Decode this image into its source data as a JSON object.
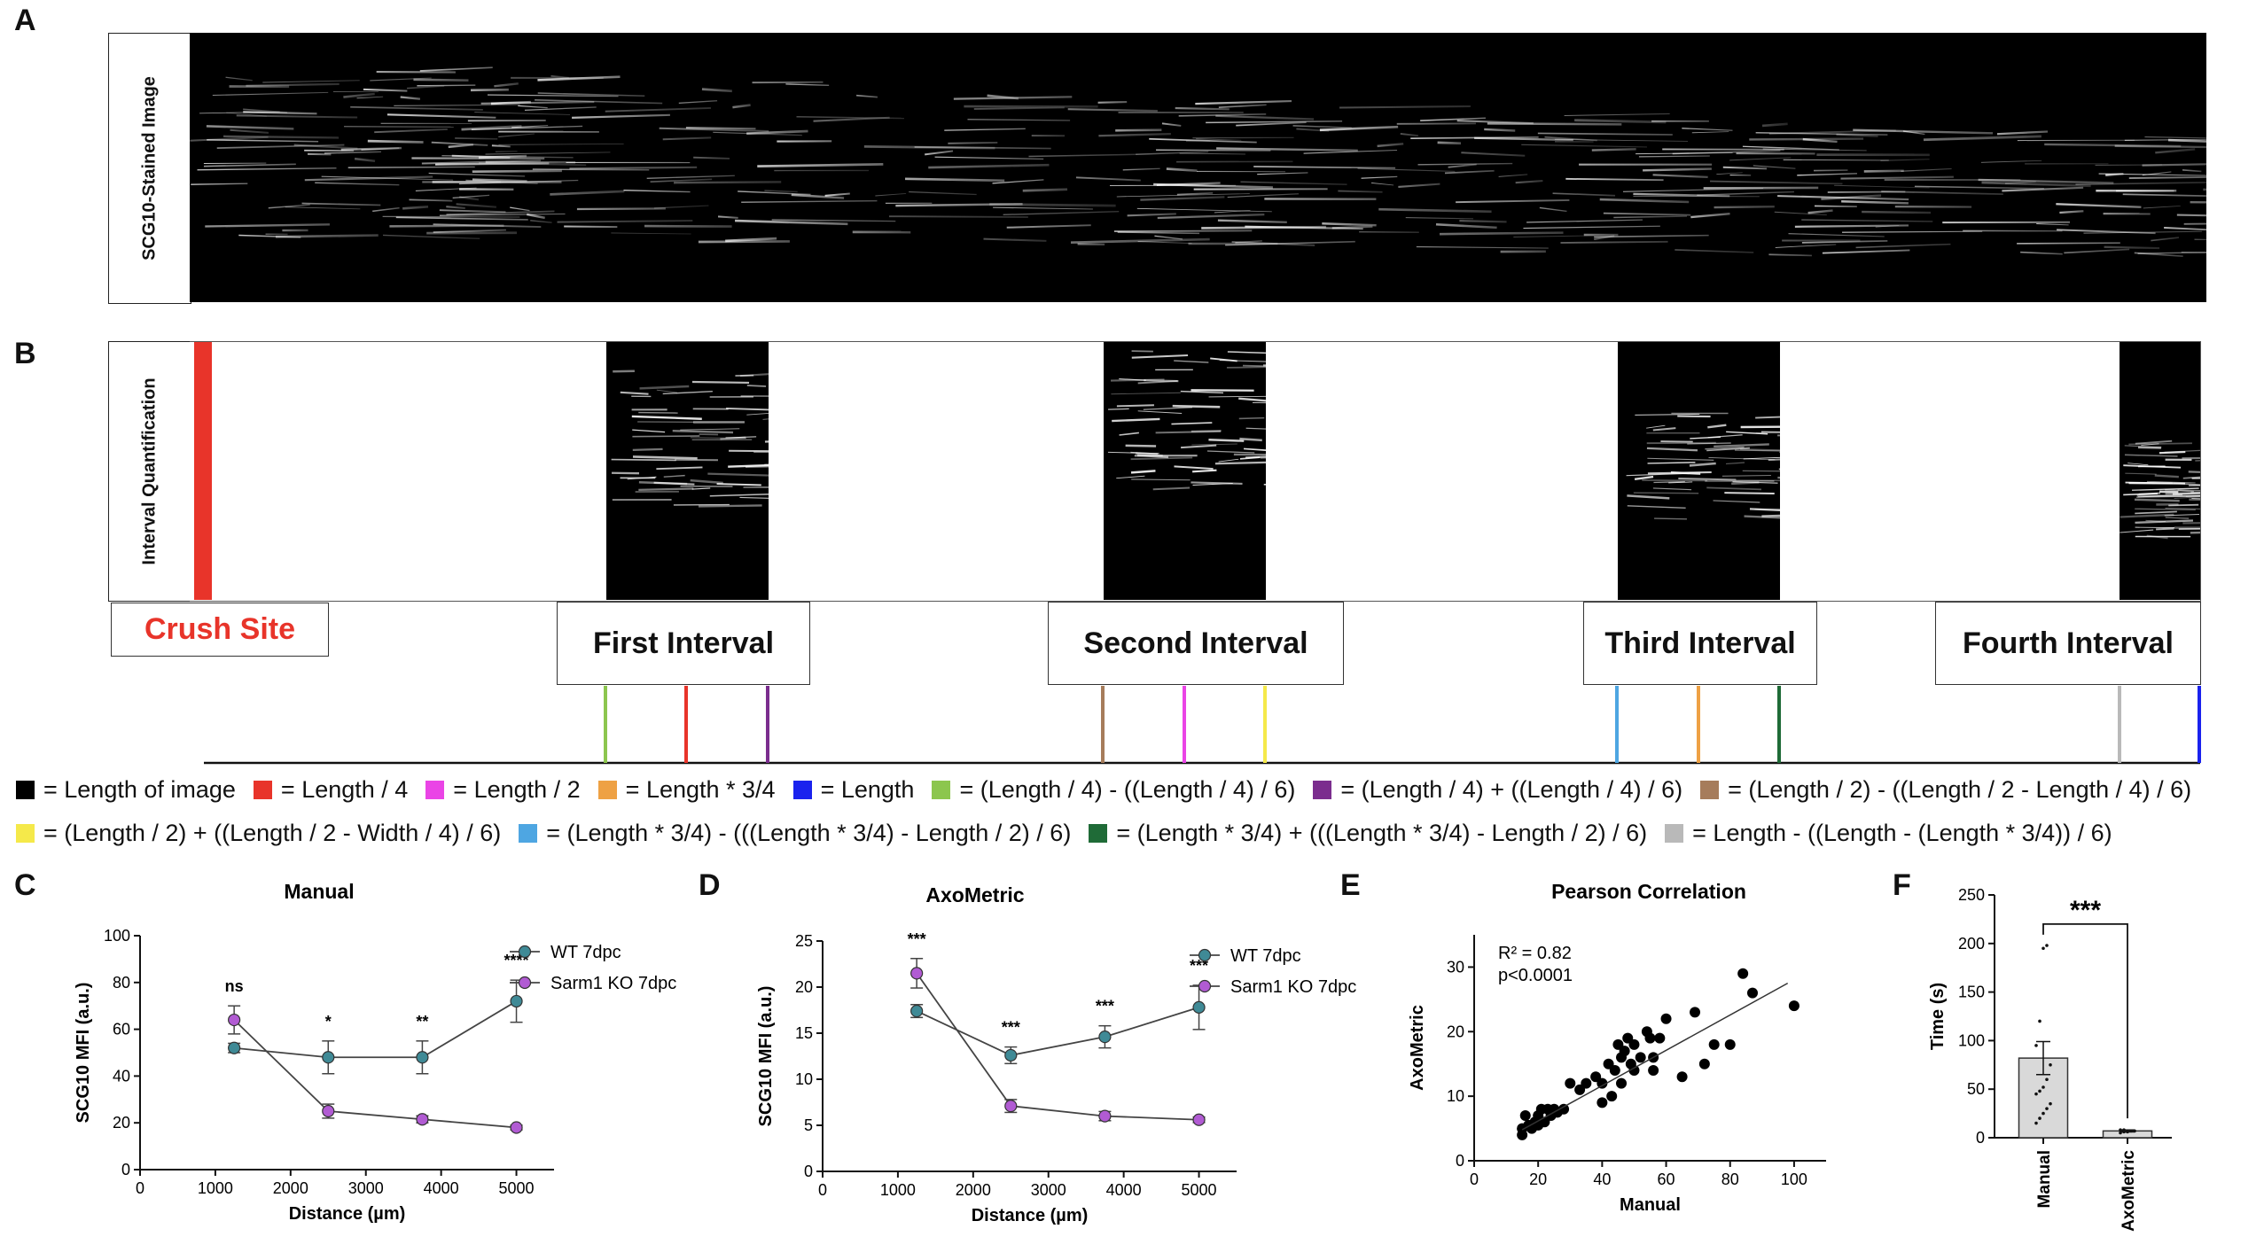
{
  "panels": {
    "A": {
      "letter": "A",
      "label": "SCG10-Stained Image"
    },
    "B": {
      "letter": "B",
      "label": "Interval Quantification",
      "crush_site": "Crush Site",
      "intervals": [
        "First Interval",
        "Second Interval",
        "Third Interval",
        "Fourth Interval"
      ]
    }
  },
  "legend": {
    "row1": [
      {
        "color": "#000000",
        "text": "= Length of image"
      },
      {
        "color": "#e8342a",
        "text": "= Length / 4"
      },
      {
        "color": "#ea44e6",
        "text": "= Length / 2"
      },
      {
        "color": "#eea144",
        "text": "= Length * 3/4"
      },
      {
        "color": "#1a22ee",
        "text": "= Length"
      },
      {
        "color": "#8cc64e",
        "text": "= (Length / 4) - ((Length / 4) / 6)"
      },
      {
        "color": "#7b2d8e",
        "text": "= (Length / 4) + ((Length / 4) / 6)"
      },
      {
        "color": "#a67c5b",
        "text": "= (Length / 2) - ((Length / 2 - Length / 4) / 6)"
      }
    ],
    "row2": [
      {
        "color": "#f5e94a",
        "text": "= (Length / 2) + ((Length / 2 - Width / 4) / 6)"
      },
      {
        "color": "#4ea6e2",
        "text": "= (Length * 3/4) - (((Length * 3/4) - Length / 2) / 6)"
      },
      {
        "color": "#1f6b37",
        "text": "= (Length * 3/4) + (((Length * 3/4) - Length / 2) / 6)"
      },
      {
        "color": "#b9b9b9",
        "text": "= Length - ((Length - (Length * 3/4)) / 6)"
      }
    ]
  },
  "chart_data": [
    {
      "panel": "C",
      "type": "line",
      "title": "Manual",
      "xlabel": "Distance (µm)",
      "ylabel": "SCG10 MFI (a.u.)",
      "xlim": [
        0,
        5500
      ],
      "ylim": [
        0,
        100
      ],
      "xticks": [
        "0",
        "1000",
        "2000",
        "3000",
        "4000",
        "5000"
      ],
      "yticks": [
        "0",
        "20",
        "40",
        "60",
        "80",
        "100"
      ],
      "x": [
        1250,
        2500,
        3750,
        5000
      ],
      "series": [
        {
          "name": "WT 7dpc",
          "color": "#3f8a96",
          "values": [
            52,
            48,
            48,
            72
          ],
          "err": [
            2,
            7,
            7,
            9
          ]
        },
        {
          "name": "Sarm1 KO 7dpc",
          "color": "#b15bd3",
          "values": [
            64,
            25,
            21.5,
            18
          ],
          "err": [
            6,
            3,
            1.5,
            1
          ]
        }
      ],
      "significance": [
        "ns",
        "*",
        "**",
        "****"
      ]
    },
    {
      "panel": "D",
      "type": "line",
      "title": "AxoMetric",
      "xlabel": "Distance (µm)",
      "ylabel": "SCG10 MFI (a.u.)",
      "xlim": [
        0,
        5500
      ],
      "ylim": [
        0,
        25
      ],
      "xticks": [
        "0",
        "1000",
        "2000",
        "3000",
        "4000",
        "5000"
      ],
      "yticks": [
        "0",
        "5",
        "10",
        "15",
        "20",
        "25"
      ],
      "x": [
        1250,
        2500,
        3750,
        5000
      ],
      "series": [
        {
          "name": "WT 7dpc",
          "color": "#3f8a96",
          "values": [
            17.4,
            12.6,
            14.6,
            17.8
          ],
          "err": [
            0.7,
            0.9,
            1.2,
            2.4
          ]
        },
        {
          "name": "Sarm1 KO 7dpc",
          "color": "#b15bd3",
          "values": [
            21.5,
            7.1,
            6.0,
            5.6
          ],
          "err": [
            1.6,
            0.7,
            0.5,
            0.3
          ]
        }
      ],
      "significance": [
        "***",
        "***",
        "***",
        "***"
      ]
    },
    {
      "panel": "E",
      "type": "scatter",
      "title": "Pearson Correlation",
      "xlabel": "Manual",
      "ylabel": "AxoMetric",
      "xlim": [
        0,
        110
      ],
      "ylim": [
        0,
        35
      ],
      "xticks": [
        "0",
        "20",
        "40",
        "60",
        "80",
        "100"
      ],
      "yticks": [
        "0",
        "10",
        "20",
        "30"
      ],
      "annotation_r2": "R² = 0.82",
      "annotation_p": "p<0.0001",
      "fit": {
        "x": [
          15,
          98
        ],
        "y": [
          4.8,
          27.5
        ]
      },
      "points": [
        [
          15,
          4
        ],
        [
          15,
          5
        ],
        [
          16,
          7
        ],
        [
          17,
          5.5
        ],
        [
          18,
          5
        ],
        [
          19,
          6
        ],
        [
          20,
          5.5
        ],
        [
          20,
          7
        ],
        [
          21,
          8
        ],
        [
          22,
          6
        ],
        [
          23,
          8
        ],
        [
          24,
          7
        ],
        [
          25,
          8
        ],
        [
          26,
          7.5
        ],
        [
          28,
          8
        ],
        [
          30,
          12
        ],
        [
          33,
          11
        ],
        [
          35,
          12
        ],
        [
          38,
          13
        ],
        [
          40,
          9
        ],
        [
          40,
          12
        ],
        [
          42,
          15
        ],
        [
          43,
          10
        ],
        [
          44,
          14
        ],
        [
          45,
          18
        ],
        [
          46,
          12
        ],
        [
          46,
          16
        ],
        [
          47,
          17
        ],
        [
          48,
          19
        ],
        [
          49,
          15
        ],
        [
          50,
          14
        ],
        [
          50,
          18
        ],
        [
          52,
          16
        ],
        [
          54,
          20
        ],
        [
          55,
          19
        ],
        [
          56,
          14
        ],
        [
          56,
          16
        ],
        [
          58,
          19
        ],
        [
          60,
          22
        ],
        [
          65,
          13
        ],
        [
          69,
          23
        ],
        [
          72,
          15
        ],
        [
          75,
          18
        ],
        [
          80,
          18
        ],
        [
          84,
          29
        ],
        [
          87,
          26
        ],
        [
          100,
          24
        ]
      ]
    },
    {
      "panel": "F",
      "type": "bar",
      "title": "",
      "xlabel": "",
      "ylabel": "Time (s)",
      "ylim": [
        0,
        250
      ],
      "yticks": [
        "0",
        "50",
        "100",
        "150",
        "200",
        "250"
      ],
      "categories": [
        "Manual",
        "AxoMetric"
      ],
      "values": [
        82,
        7
      ],
      "err": [
        17,
        1
      ],
      "points": [
        [
          15,
          20,
          25,
          30,
          35,
          45,
          48,
          52,
          60,
          75,
          95,
          120,
          195,
          198
        ],
        [
          5,
          6,
          6,
          7,
          7,
          8,
          8
        ]
      ],
      "significance": "***"
    }
  ]
}
